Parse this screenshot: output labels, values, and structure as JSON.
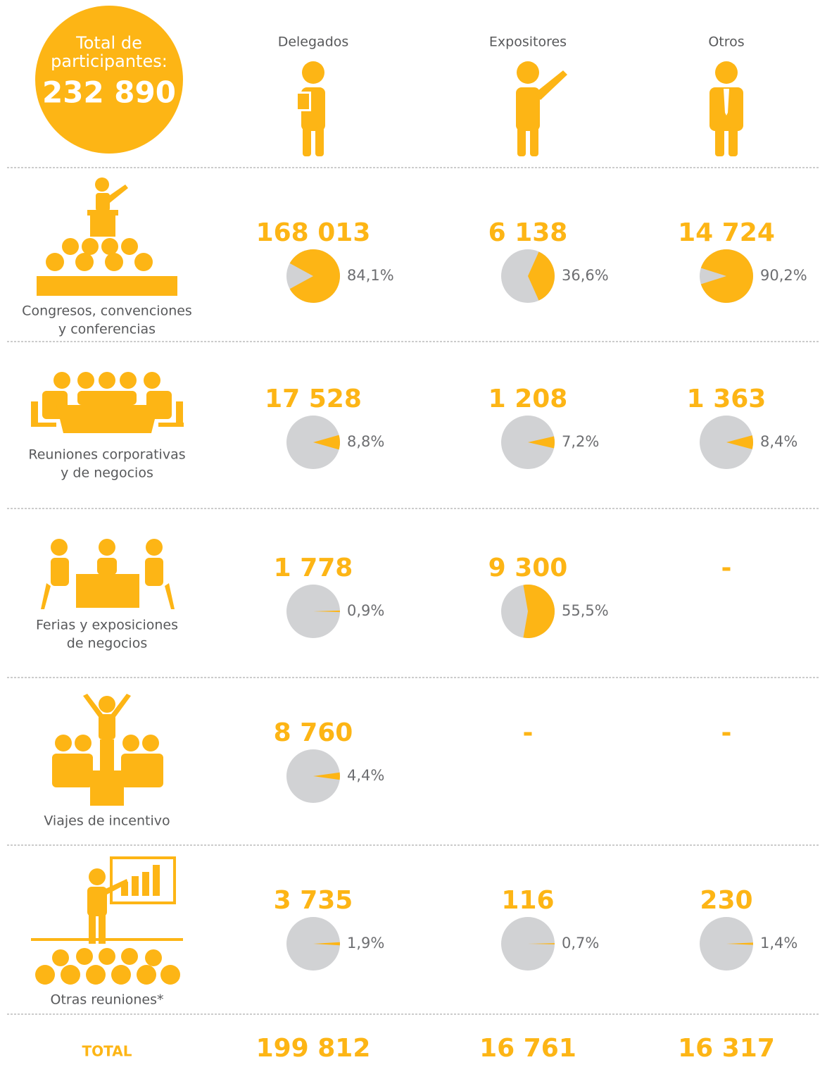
{
  "header": {
    "total_label": [
      "Total de",
      "participantes:"
    ],
    "total": "232 890",
    "columns": [
      "Delegados",
      "Expositores",
      "Otros"
    ]
  },
  "rows": [
    {
      "label": [
        "Congresos, convenciones",
        "y conferencias"
      ],
      "cells": [
        {
          "count": "168 013",
          "pct": 84.1,
          "pct_label": "84,1%"
        },
        {
          "count": "6 138",
          "pct": 36.6,
          "pct_label": "36,6%"
        },
        {
          "count": "14 724",
          "pct": 90.2,
          "pct_label": "90,2%"
        }
      ]
    },
    {
      "label": [
        "Reuniones corporativas",
        "y de negocios"
      ],
      "cells": [
        {
          "count": "17 528",
          "pct": 8.8,
          "pct_label": "8,8%"
        },
        {
          "count": "1 208",
          "pct": 7.2,
          "pct_label": "7,2%"
        },
        {
          "count": "1 363",
          "pct": 8.4,
          "pct_label": "8,4%"
        }
      ]
    },
    {
      "label": [
        "Ferias y exposiciones",
        "de negocios"
      ],
      "cells": [
        {
          "count": "1 778",
          "pct": 0.9,
          "pct_label": "0,9%"
        },
        {
          "count": "9 300",
          "pct": 55.5,
          "pct_label": "55,5%"
        },
        {
          "count": "-"
        }
      ]
    },
    {
      "label": [
        "Viajes de incentivo"
      ],
      "cells": [
        {
          "count": "8 760",
          "pct": 4.4,
          "pct_label": "4,4%"
        },
        {
          "count": "-"
        },
        {
          "count": "-"
        }
      ]
    },
    {
      "label": [
        "Otras reuniones*"
      ],
      "cells": [
        {
          "count": "3 735",
          "pct": 1.9,
          "pct_label": "1,9%"
        },
        {
          "count": "116",
          "pct": 0.7,
          "pct_label": "0,7%"
        },
        {
          "count": "230",
          "pct": 1.4,
          "pct_label": "1,4%"
        }
      ]
    }
  ],
  "total": {
    "label": "TOTAL",
    "values": [
      "199 812",
      "16 761",
      "16 317"
    ]
  }
}
